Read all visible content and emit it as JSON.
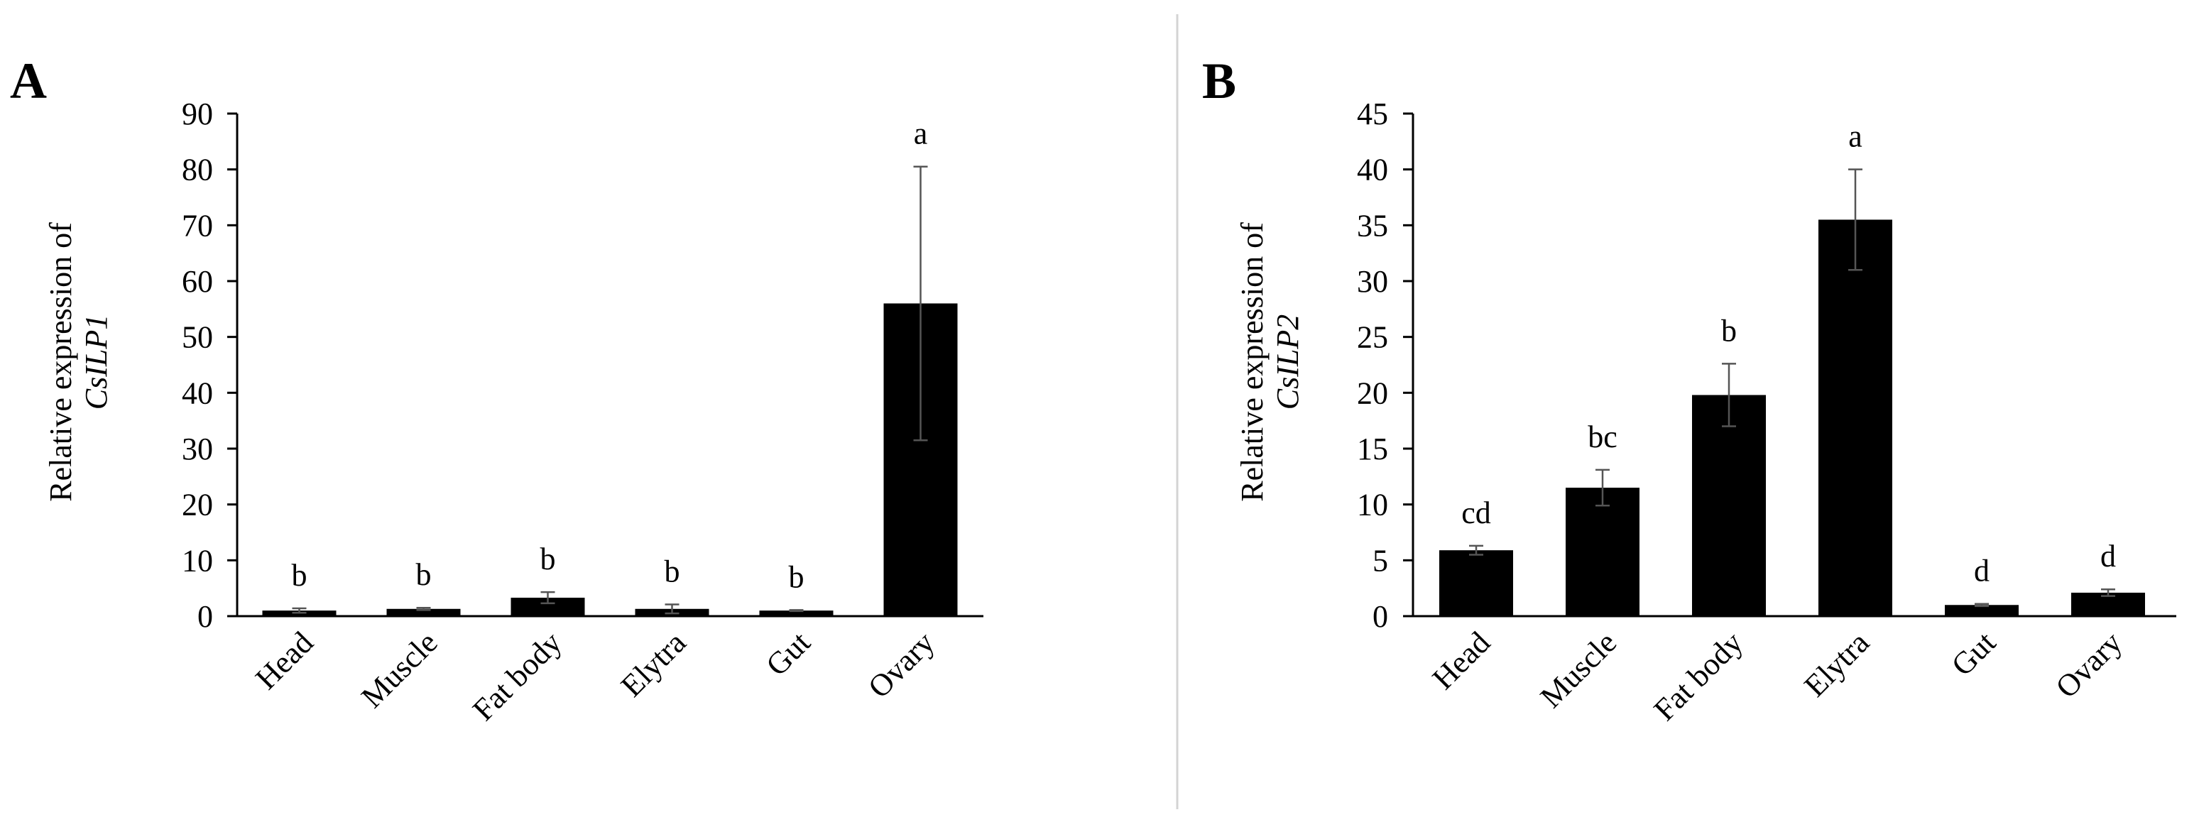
{
  "chart_data": [
    {
      "type": "bar",
      "panel_label": "A",
      "ylabel_line1": "Relative expression of",
      "ylabel_gene": "CsILP1",
      "categories": [
        "Head",
        "Muscle",
        "Fat body",
        "Elytra",
        "Gut",
        "Ovary"
      ],
      "values": [
        1.0,
        1.3,
        3.3,
        1.3,
        1.0,
        56.0
      ],
      "error": [
        0.4,
        0.2,
        1.0,
        0.8,
        0.1,
        24.5
      ],
      "significance": [
        "b",
        "b",
        "b",
        "b",
        "b",
        "a"
      ],
      "ylim": [
        0,
        90
      ],
      "yticks": [
        0,
        10,
        20,
        30,
        40,
        50,
        60,
        70,
        80,
        90
      ],
      "grid": false,
      "bar_color": "#000000"
    },
    {
      "type": "bar",
      "panel_label": "B",
      "ylabel_line1": "Relative expression of",
      "ylabel_gene": "CsILP2",
      "categories": [
        "Head",
        "Muscle",
        "Fat body",
        "Elytra",
        "Gut",
        "Ovary"
      ],
      "values": [
        5.9,
        11.5,
        19.8,
        35.5,
        1.0,
        2.1
      ],
      "error": [
        0.4,
        1.6,
        2.8,
        4.5,
        0.1,
        0.3
      ],
      "significance": [
        "cd",
        "bc",
        "b",
        "a",
        "d",
        "d"
      ],
      "ylim": [
        0,
        45
      ],
      "yticks": [
        0,
        5,
        10,
        15,
        20,
        25,
        30,
        35,
        40,
        45
      ],
      "grid": false,
      "bar_color": "#000000"
    }
  ]
}
